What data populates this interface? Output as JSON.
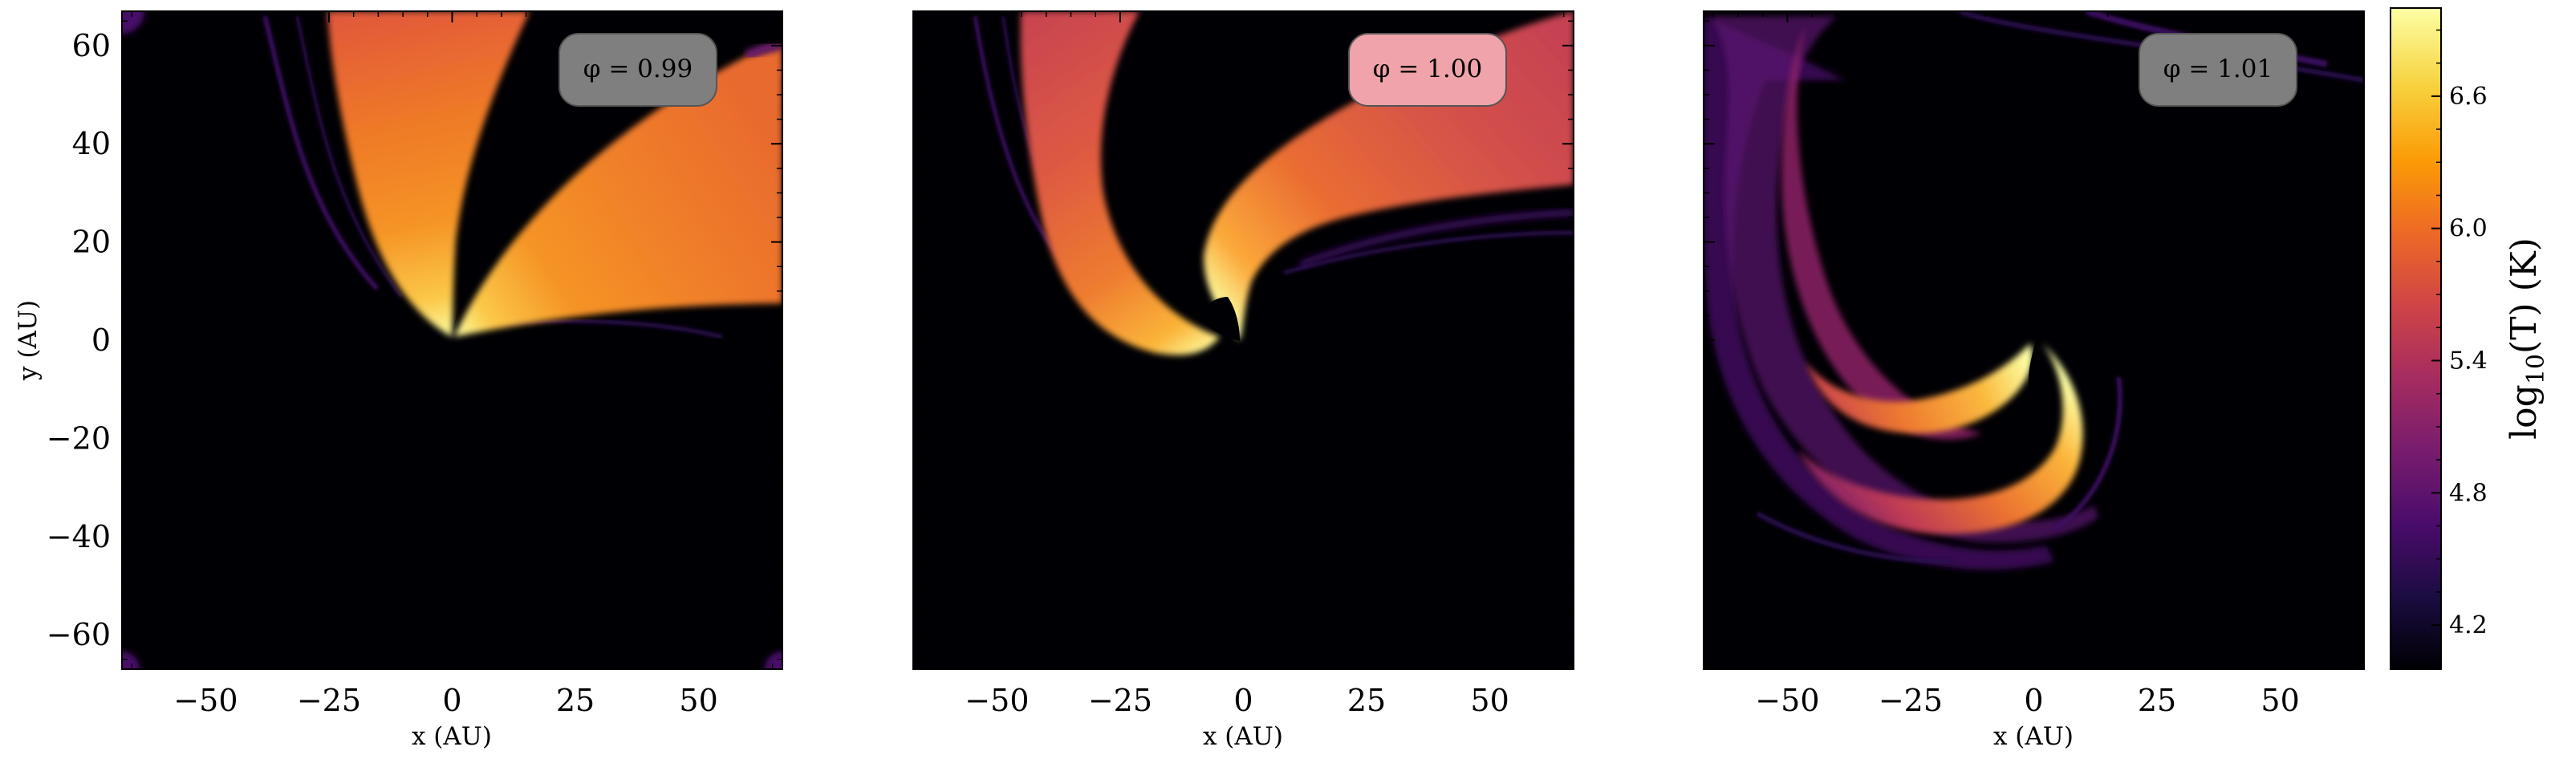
{
  "chart_data": [
    {
      "type": "heatmap",
      "panel": "left",
      "annotation": "φ = 0.99",
      "xlabel": "x (AU)",
      "ylabel": "y (AU)",
      "xlim": [
        -67,
        67
      ],
      "ylim": [
        -67,
        67
      ],
      "xticks": [
        -50,
        -25,
        0,
        25,
        50
      ],
      "yticks": [
        -60,
        -40,
        -20,
        0,
        20,
        40,
        60
      ],
      "xtick_labels": [
        "−50",
        "−25",
        "0",
        "25",
        "50"
      ],
      "ytick_labels": [
        "−60",
        "−40",
        "−20",
        "0",
        "20",
        "40",
        "60"
      ]
    },
    {
      "type": "heatmap",
      "panel": "middle",
      "annotation": "φ = 1.00",
      "xlabel": "x (AU)",
      "xlim": [
        -67,
        67
      ],
      "ylim": [
        -67,
        67
      ],
      "xticks": [
        -50,
        -25,
        0,
        25,
        50
      ],
      "xtick_labels": [
        "−50",
        "−25",
        "0",
        "25",
        "50"
      ]
    },
    {
      "type": "heatmap",
      "panel": "right",
      "annotation": "φ = 1.01",
      "xlabel": "x (AU)",
      "xlim": [
        -67,
        67
      ],
      "ylim": [
        -67,
        67
      ],
      "xticks": [
        -50,
        -25,
        0,
        25,
        50
      ],
      "xtick_labels": [
        "−50",
        "−25",
        "0",
        "25",
        "50"
      ]
    }
  ],
  "colorbar": {
    "label": "log10(T) (K)",
    "label_main": "log",
    "label_sub": "10",
    "label_rest": "(T) (K)",
    "range": [
      4.0,
      7.0
    ],
    "ticks": [
      4.2,
      4.8,
      5.4,
      6.0,
      6.6
    ],
    "tick_labels": [
      "4.2",
      "4.8",
      "5.4",
      "6.0",
      "6.6"
    ],
    "colormap": "inferno",
    "stops": [
      "#000004",
      "#1b0c41",
      "#4a0c6b",
      "#781c6d",
      "#a52c60",
      "#cf4446",
      "#ed6925",
      "#fb9b06",
      "#f7d13d",
      "#fcffa4"
    ]
  },
  "colors": {
    "background": "#000004",
    "phase_box_grey": "#7f7f7f",
    "phase_box_pink": "#f0a3aa"
  }
}
